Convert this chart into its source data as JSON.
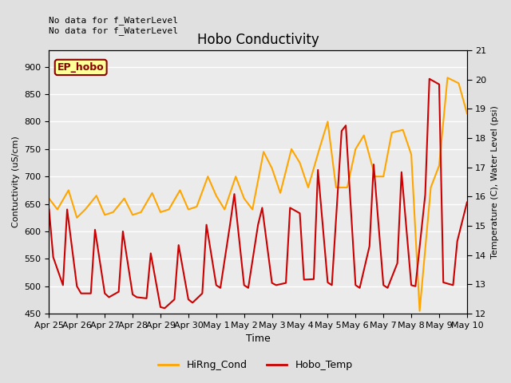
{
  "title": "Hobo Conductivity",
  "xlabel": "Time",
  "ylabel_left": "Contuctivity (uS/cm)",
  "ylabel_right": "Temperature (C), Water Level (psi)",
  "annotation_line1": "No data for f_WaterLevel",
  "annotation_line2": "No data for f_WaterLevel",
  "legend_label_box": "EP_hobo",
  "legend_entries": [
    "HiRng_Cond",
    "Hobo_Temp"
  ],
  "legend_colors": [
    "#FFA500",
    "#CC0000"
  ],
  "ylim_left": [
    450,
    930
  ],
  "ylim_right": [
    12.0,
    21.0
  ],
  "yticks_left": [
    450,
    500,
    550,
    600,
    650,
    700,
    750,
    800,
    850,
    900
  ],
  "yticks_right": [
    12.0,
    13.0,
    14.0,
    15.0,
    16.0,
    17.0,
    18.0,
    19.0,
    20.0,
    21.0
  ],
  "xtick_labels": [
    "Apr 25",
    "Apr 26",
    "Apr 27",
    "Apr 28",
    "Apr 29",
    "Apr 30",
    "May 1",
    "May 2",
    "May 3",
    "May 4",
    "May 5",
    "May 6",
    "May 7",
    "May 8",
    "May 9",
    "May 10"
  ],
  "background_color": "#E0E0E0",
  "plot_bg_color": "#EBEBEB",
  "grid_color": "#FFFFFF",
  "orange_color": "#FFA500",
  "red_color": "#CC0000",
  "cond_x": [
    0.0,
    0.3,
    0.7,
    1.0,
    1.3,
    1.7,
    2.0,
    2.3,
    2.7,
    3.0,
    3.3,
    3.7,
    4.0,
    4.3,
    4.7,
    5.0,
    5.3,
    5.7,
    6.0,
    6.3,
    6.7,
    7.0,
    7.3,
    7.7,
    8.0,
    8.3,
    8.7,
    9.0,
    9.3,
    9.7,
    10.0,
    10.3,
    10.7,
    11.0,
    11.3,
    11.7,
    12.0,
    12.3,
    12.7,
    13.0,
    13.3,
    13.7,
    14.0,
    14.3,
    14.7,
    15.0
  ],
  "cond_y": [
    660,
    640,
    675,
    625,
    640,
    665,
    630,
    635,
    660,
    630,
    635,
    670,
    635,
    640,
    675,
    640,
    645,
    700,
    665,
    640,
    700,
    660,
    640,
    745,
    715,
    670,
    750,
    725,
    680,
    750,
    800,
    680,
    680,
    750,
    775,
    700,
    700,
    780,
    785,
    740,
    455,
    680,
    720,
    880,
    870,
    815
  ],
  "temp_x": [
    0.0,
    0.15,
    0.5,
    0.65,
    1.0,
    1.15,
    1.5,
    1.65,
    2.0,
    2.15,
    2.5,
    2.65,
    3.0,
    3.15,
    3.5,
    3.65,
    4.0,
    4.15,
    4.5,
    4.65,
    5.0,
    5.15,
    5.5,
    5.65,
    6.0,
    6.15,
    6.5,
    6.65,
    7.0,
    7.15,
    7.5,
    7.65,
    8.0,
    8.15,
    8.5,
    8.65,
    9.0,
    9.15,
    9.5,
    9.65,
    10.0,
    10.15,
    10.5,
    10.65,
    11.0,
    11.15,
    11.5,
    11.65,
    12.0,
    12.15,
    12.5,
    12.65,
    13.0,
    13.15,
    13.5,
    13.65,
    14.0,
    14.15,
    14.5,
    14.65,
    15.0
  ],
  "temp_y": [
    640,
    553,
    502,
    640,
    500,
    487,
    487,
    603,
    487,
    480,
    490,
    600,
    485,
    480,
    478,
    560,
    462,
    460,
    476,
    575,
    476,
    470,
    487,
    612,
    502,
    497,
    614,
    668,
    502,
    497,
    612,
    643,
    506,
    502,
    506,
    643,
    633,
    512,
    513,
    712,
    507,
    502,
    783,
    793,
    502,
    497,
    573,
    722,
    502,
    497,
    542,
    708,
    502,
    500,
    667,
    878,
    868,
    507,
    502,
    582,
    653
  ]
}
